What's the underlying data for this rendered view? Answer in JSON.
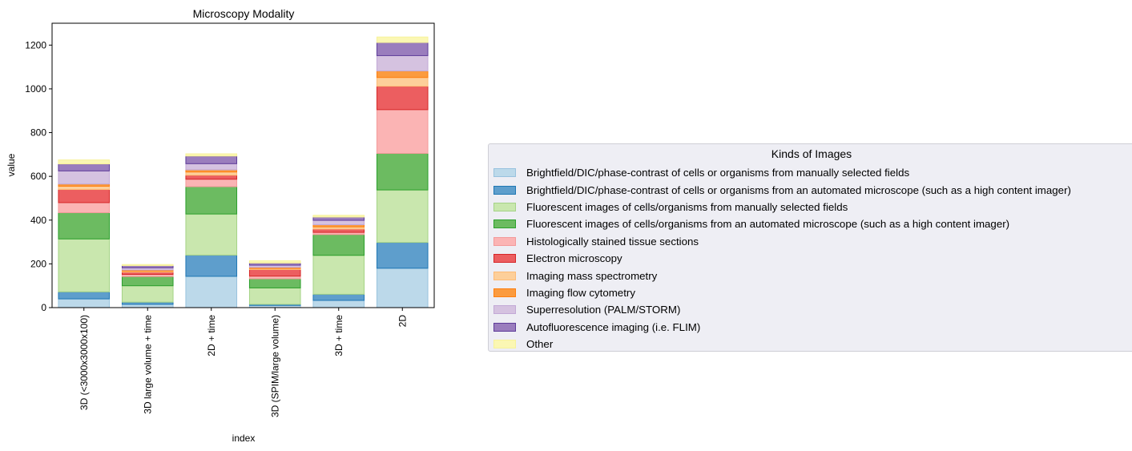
{
  "chart_data": {
    "type": "bar",
    "stacked": true,
    "title": "Microscopy Modality",
    "xlabel": "index",
    "ylabel": "value",
    "ylim": [
      0,
      1300
    ],
    "yticks": [
      0,
      200,
      400,
      600,
      800,
      1000,
      1200
    ],
    "grid": false,
    "legend_title": "Kinds of Images",
    "legend_placement": "right",
    "categories": [
      "3D (<3000x3000x100)",
      "3D large volume + time",
      "2D + time",
      "3D (SPIM/large volume)",
      "3D + time",
      "2D"
    ],
    "series": [
      {
        "name": "Brightfield/DIC/phase-contrast of cells or organisms from manually selected fields",
        "fill": "#bcd9ea",
        "edge": "#98c2de",
        "values": [
          40,
          15,
          143,
          10,
          33,
          180
        ]
      },
      {
        "name": "Brightfield/DIC/phase-contrast of cells or organisms from an automated microscope (such as a high content imager)",
        "fill": "#5e9ecc",
        "edge": "#1f77b4",
        "values": [
          32,
          10,
          97,
          5,
          28,
          118
        ]
      },
      {
        "name": "Fluorescent images of cells/organisms from manually selected fields",
        "fill": "#c9e7ae",
        "edge": "#a5d387",
        "values": [
          242,
          75,
          188,
          75,
          178,
          240
        ]
      },
      {
        "name": "Fluorescent images of cells/organisms from an automated microscope (such as a high content imager)",
        "fill": "#6cbb61",
        "edge": "#2ca02c",
        "values": [
          120,
          42,
          125,
          42,
          95,
          167
        ]
      },
      {
        "name": "Histologically stained tissue sections",
        "fill": "#fbb4b4",
        "edge": "#f39a9a",
        "values": [
          46,
          10,
          34,
          12,
          10,
          200
        ]
      },
      {
        "name": "Electron microscopy",
        "fill": "#ec5e60",
        "edge": "#d62728",
        "values": [
          60,
          10,
          18,
          30,
          15,
          107
        ]
      },
      {
        "name": "Imaging mass spectrometry",
        "fill": "#fdcf9a",
        "edge": "#fdbb77",
        "values": [
          15,
          5,
          15,
          5,
          10,
          40
        ]
      },
      {
        "name": "Imaging flow cytometry",
        "fill": "#fb9b3f",
        "edge": "#ff7f0e",
        "values": [
          10,
          5,
          10,
          5,
          10,
          30
        ]
      },
      {
        "name": "Superresolution (PALM/STORM)",
        "fill": "#d5c2e0",
        "edge": "#c2a9d6",
        "values": [
          60,
          10,
          28,
          10,
          20,
          70
        ]
      },
      {
        "name": "Autofluorescence imaging (i.e. FLIM)",
        "fill": "#9a7dbd",
        "edge": "#5e3c99",
        "values": [
          32,
          10,
          35,
          10,
          15,
          60
        ]
      },
      {
        "name": "Other",
        "fill": "#fbf7b3",
        "edge": "#f7f29a",
        "values": [
          18,
          5,
          10,
          10,
          8,
          25
        ]
      }
    ]
  }
}
